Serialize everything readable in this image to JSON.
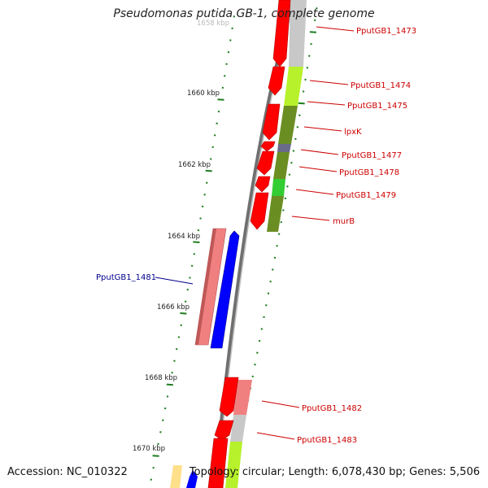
{
  "title": "Pseudomonas putida GB-1, complete genome",
  "accession": "Accession: NC_010322",
  "topology": "Topology: circular; Length: 6,078,430 bp; Genes: 5,506",
  "colors": {
    "background": "#ffffff",
    "backbone": "#777777",
    "tick": "#1e7d1e",
    "forward_gene": "#0000ff",
    "reverse_gene": "#ff0000",
    "forward_label": "#00008b",
    "reverse_label": "#cc0000"
  },
  "scale": {
    "partial_top_label": "1658 kbp",
    "labels": [
      "1660 kbp",
      "1662 kbp",
      "1664 kbp",
      "1666 kbp",
      "1668 kbp",
      "1670 kbp"
    ]
  },
  "genes": [
    {
      "label": "PputGB1_1473",
      "strand": "reverse"
    },
    {
      "label": "PputGB1_1474",
      "strand": "reverse"
    },
    {
      "label": "PputGB1_1475",
      "strand": "reverse"
    },
    {
      "label": "lpxK",
      "strand": "reverse"
    },
    {
      "label": "PputGB1_1477",
      "strand": "reverse"
    },
    {
      "label": "PputGB1_1478",
      "strand": "reverse"
    },
    {
      "label": "PputGB1_1479",
      "strand": "reverse"
    },
    {
      "label": "murB",
      "strand": "reverse"
    },
    {
      "label": "PputGB1_1481",
      "strand": "forward"
    },
    {
      "label": "PputGB1_1482",
      "strand": "reverse"
    },
    {
      "label": "PputGB1_1483",
      "strand": "reverse"
    }
  ]
}
